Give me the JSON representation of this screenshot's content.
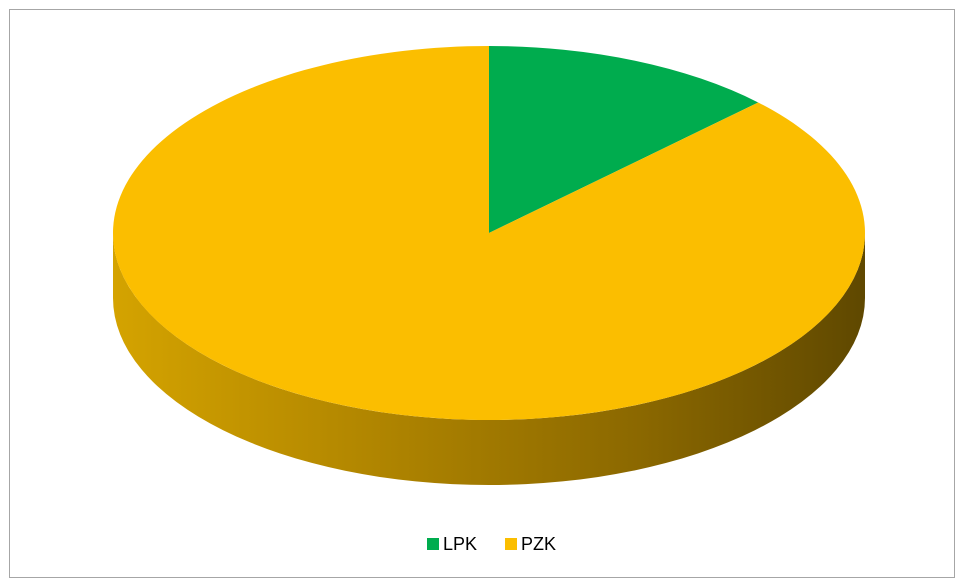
{
  "chart_data": {
    "type": "pie",
    "style": "3d",
    "categories": [
      "LPK",
      "PZK"
    ],
    "values": [
      12.7,
      87.3
    ],
    "colors": [
      "#00AC4E",
      "#FBBE00"
    ],
    "title": "",
    "legend": "bottom"
  }
}
